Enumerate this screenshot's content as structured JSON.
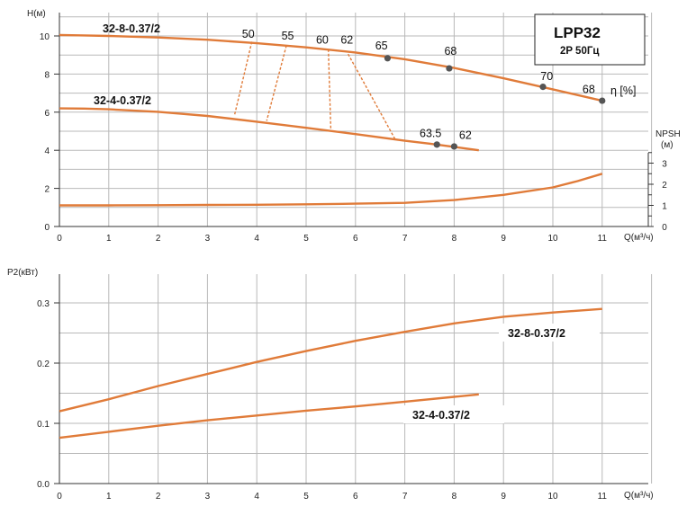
{
  "chart_data": [
    {
      "type": "line",
      "ylabel": "H(м)",
      "xlabel": "Q(м³/ч)",
      "xlim": [
        0,
        12
      ],
      "ylim": [
        0,
        11
      ],
      "x_ticks": [
        "0",
        "1",
        "2",
        "3",
        "4",
        "5",
        "6",
        "7",
        "8",
        "9",
        "10",
        "11"
      ],
      "y_ticks": [
        "0",
        "2",
        "4",
        "6",
        "8",
        "10"
      ],
      "grid": true,
      "box_title": "LPP32",
      "box_subtitle": "2P  50Гц",
      "eff_unit": "η [%]",
      "npsh_label": "NPSH",
      "npsh_unit": "(м)",
      "npsh_ticks": [
        "0",
        "1",
        "2",
        "3"
      ],
      "npsh_ylim": [
        0,
        4.5
      ],
      "series": [
        {
          "name": "32-8-0.37/2",
          "color": "#e07b39",
          "x": [
            0,
            0.5,
            1,
            2,
            3,
            4,
            5,
            6,
            7,
            8,
            9,
            10,
            11
          ],
          "y": [
            10.05,
            10.03,
            10.0,
            9.92,
            9.8,
            9.62,
            9.4,
            9.13,
            8.78,
            8.32,
            7.78,
            7.2,
            6.6
          ]
        },
        {
          "name": "32-4-0.37/2",
          "color": "#e07b39",
          "x": [
            0,
            0.5,
            1,
            2,
            3,
            4,
            5,
            6,
            7,
            7.5,
            8,
            8.5
          ],
          "y": [
            6.2,
            6.19,
            6.15,
            6.02,
            5.8,
            5.5,
            5.18,
            4.85,
            4.5,
            4.35,
            4.18,
            4.0
          ]
        }
      ],
      "npsh_curve": {
        "x": [
          0,
          1,
          2,
          3,
          4,
          5,
          6,
          7,
          8,
          9,
          10,
          10.5,
          11
        ],
        "y": [
          1.0,
          1.0,
          1.01,
          1.02,
          1.03,
          1.05,
          1.08,
          1.12,
          1.25,
          1.5,
          1.85,
          2.15,
          2.5
        ]
      },
      "efficiency_labels": [
        {
          "text": "50",
          "x": 3.7,
          "y": 9.9
        },
        {
          "text": "55",
          "x": 4.5,
          "y": 9.8
        },
        {
          "text": "60",
          "x": 5.2,
          "y": 9.6
        },
        {
          "text": "62",
          "x": 5.7,
          "y": 9.6
        },
        {
          "text": "65",
          "x": 6.4,
          "y": 9.3
        },
        {
          "text": "68",
          "x": 7.8,
          "y": 9.0
        },
        {
          "text": "70",
          "x": 9.75,
          "y": 7.7
        },
        {
          "text": "68",
          "x": 10.6,
          "y": 7.0
        },
        {
          "text": "63.5",
          "x": 7.3,
          "y": 4.7
        },
        {
          "text": "62",
          "x": 8.1,
          "y": 4.6
        }
      ],
      "efficiency_points": [
        {
          "x": 6.65,
          "y": 8.83
        },
        {
          "x": 7.9,
          "y": 8.3
        },
        {
          "x": 9.8,
          "y": 7.33
        },
        {
          "x": 11.0,
          "y": 6.6
        },
        {
          "x": 7.65,
          "y": 4.3
        },
        {
          "x": 8.0,
          "y": 4.2
        }
      ],
      "iso_efficiency_lines": [
        {
          "x": [
            3.9,
            3.55
          ],
          "y": [
            9.7,
            5.85
          ]
        },
        {
          "x": [
            4.6,
            4.2
          ],
          "y": [
            9.5,
            5.55
          ]
        },
        {
          "x": [
            5.45,
            5.5
          ],
          "y": [
            9.3,
            5.1
          ]
        },
        {
          "x": [
            5.85,
            6.8
          ],
          "y": [
            9.05,
            4.6
          ]
        }
      ]
    },
    {
      "type": "line",
      "ylabel": "P2(кВт)",
      "xlabel": "Q(м³/ч)",
      "xlim": [
        0,
        12
      ],
      "ylim": [
        0,
        0.33
      ],
      "x_ticks": [
        "0",
        "1",
        "2",
        "3",
        "4",
        "5",
        "6",
        "7",
        "8",
        "9",
        "10",
        "11"
      ],
      "y_ticks": [
        "0.0",
        "0.1",
        "0.2",
        "0.3"
      ],
      "grid": true,
      "series": [
        {
          "name": "32-8-0.37/2",
          "color": "#e07b39",
          "x": [
            0,
            1,
            2,
            3,
            4,
            5,
            6,
            7,
            8,
            9,
            10,
            11
          ],
          "y": [
            0.12,
            0.14,
            0.162,
            0.182,
            0.202,
            0.22,
            0.237,
            0.252,
            0.266,
            0.277,
            0.284,
            0.29
          ]
        },
        {
          "name": "32-4-0.37/2",
          "color": "#e07b39",
          "x": [
            0,
            1,
            2,
            3,
            4,
            5,
            6,
            7,
            8,
            8.5
          ],
          "y": [
            0.076,
            0.086,
            0.096,
            0.105,
            0.113,
            0.121,
            0.128,
            0.136,
            0.144,
            0.148
          ]
        }
      ]
    }
  ]
}
